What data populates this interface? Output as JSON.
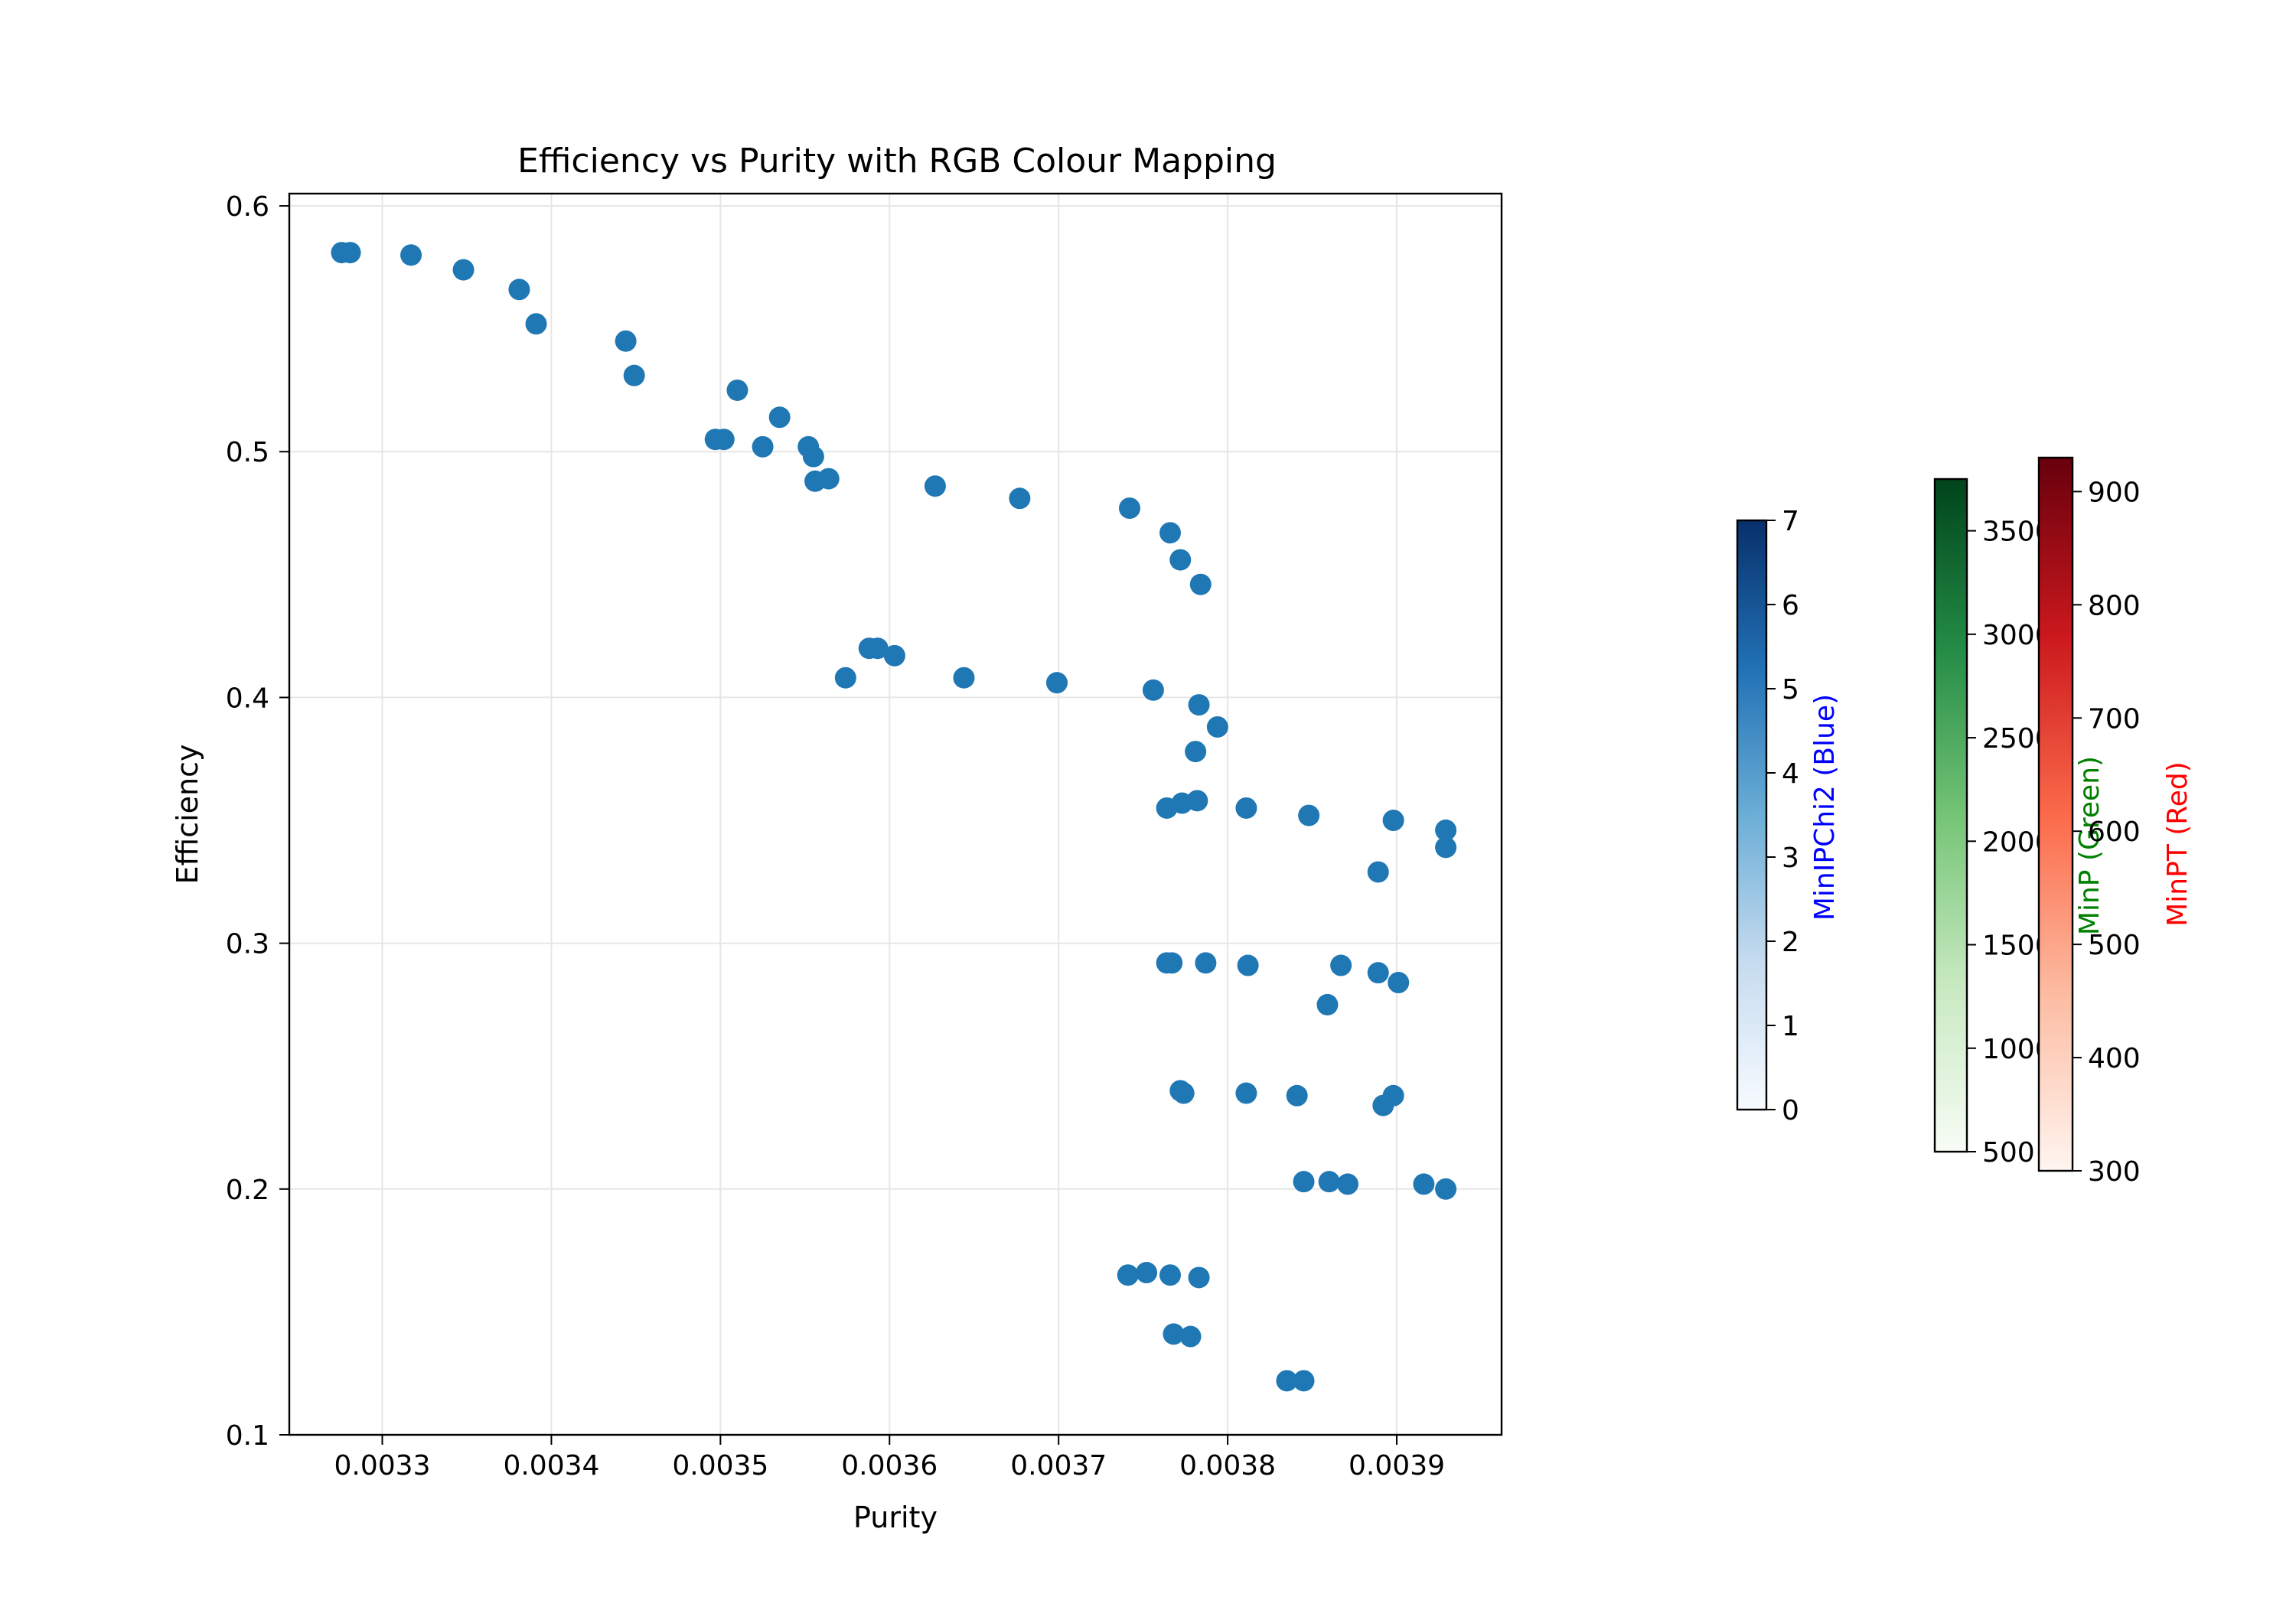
{
  "chart_data": {
    "type": "scatter",
    "title": "Efficiency vs Purity with RGB Colour Mapping",
    "xlabel": "Purity",
    "ylabel": "Efficiency",
    "xlim": [
      0.003245,
      0.003962
    ],
    "ylim": [
      0.1,
      0.605
    ],
    "grid": true,
    "xticks": [
      {
        "value": 0.0033,
        "label": "0.0033"
      },
      {
        "value": 0.0034,
        "label": "0.0034"
      },
      {
        "value": 0.0035,
        "label": "0.0035"
      },
      {
        "value": 0.0036,
        "label": "0.0036"
      },
      {
        "value": 0.0037,
        "label": "0.0037"
      },
      {
        "value": 0.0038,
        "label": "0.0038"
      },
      {
        "value": 0.0039,
        "label": "0.0039"
      }
    ],
    "yticks": [
      {
        "value": 0.1,
        "label": "0.1"
      },
      {
        "value": 0.2,
        "label": "0.2"
      },
      {
        "value": 0.3,
        "label": "0.3"
      },
      {
        "value": 0.4,
        "label": "0.4"
      },
      {
        "value": 0.5,
        "label": "0.5"
      },
      {
        "value": 0.6,
        "label": "0.6"
      }
    ],
    "marker_color": "#1f77b4",
    "points": [
      [
        0.003276,
        0.581
      ],
      [
        0.003281,
        0.581
      ],
      [
        0.003317,
        0.58
      ],
      [
        0.003348,
        0.574
      ],
      [
        0.003381,
        0.566
      ],
      [
        0.003391,
        0.552
      ],
      [
        0.003444,
        0.545
      ],
      [
        0.003449,
        0.531
      ],
      [
        0.003497,
        0.505
      ],
      [
        0.003502,
        0.505
      ],
      [
        0.00351,
        0.525
      ],
      [
        0.003525,
        0.502
      ],
      [
        0.003535,
        0.514
      ],
      [
        0.003552,
        0.502
      ],
      [
        0.003555,
        0.498
      ],
      [
        0.003556,
        0.488
      ],
      [
        0.003564,
        0.489
      ],
      [
        0.003627,
        0.486
      ],
      [
        0.003677,
        0.481
      ],
      [
        0.003742,
        0.477
      ],
      [
        0.003766,
        0.467
      ],
      [
        0.003772,
        0.456
      ],
      [
        0.003784,
        0.446
      ],
      [
        0.003574,
        0.408
      ],
      [
        0.003588,
        0.42
      ],
      [
        0.003593,
        0.42
      ],
      [
        0.003603,
        0.417
      ],
      [
        0.003644,
        0.408
      ],
      [
        0.003699,
        0.406
      ],
      [
        0.003756,
        0.403
      ],
      [
        0.003783,
        0.397
      ],
      [
        0.003794,
        0.388
      ],
      [
        0.003781,
        0.378
      ],
      [
        0.003764,
        0.355
      ],
      [
        0.003773,
        0.357
      ],
      [
        0.003782,
        0.358
      ],
      [
        0.003811,
        0.355
      ],
      [
        0.003848,
        0.352
      ],
      [
        0.003898,
        0.35
      ],
      [
        0.003929,
        0.346
      ],
      [
        0.003929,
        0.339
      ],
      [
        0.003889,
        0.329
      ],
      [
        0.003764,
        0.292
      ],
      [
        0.003767,
        0.292
      ],
      [
        0.003787,
        0.292
      ],
      [
        0.003812,
        0.291
      ],
      [
        0.003867,
        0.291
      ],
      [
        0.003889,
        0.288
      ],
      [
        0.003901,
        0.284
      ],
      [
        0.003859,
        0.275
      ],
      [
        0.003772,
        0.24
      ],
      [
        0.003774,
        0.239
      ],
      [
        0.003811,
        0.239
      ],
      [
        0.003841,
        0.238
      ],
      [
        0.003898,
        0.238
      ],
      [
        0.003892,
        0.234
      ],
      [
        0.003845,
        0.203
      ],
      [
        0.00386,
        0.203
      ],
      [
        0.003871,
        0.202
      ],
      [
        0.003916,
        0.202
      ],
      [
        0.003929,
        0.2
      ],
      [
        0.003741,
        0.165
      ],
      [
        0.003752,
        0.166
      ],
      [
        0.003766,
        0.165
      ],
      [
        0.003783,
        0.164
      ],
      [
        0.003768,
        0.141
      ],
      [
        0.003778,
        0.14
      ],
      [
        0.003835,
        0.122
      ],
      [
        0.003845,
        0.122
      ]
    ],
    "colorbars": [
      {
        "label": "MinIPChi2 (Blue)",
        "label_color": "#0000ff",
        "cmap": "Blues",
        "range": [
          0,
          7
        ],
        "ticks": [
          "0",
          "1",
          "2",
          "3",
          "4",
          "5",
          "6",
          "7"
        ],
        "tick_values": [
          0,
          1,
          2,
          3,
          4,
          5,
          6,
          7
        ],
        "stops": [
          "#f7fbff",
          "#c6dbef",
          "#6baed6",
          "#2171b5",
          "#08306b"
        ]
      },
      {
        "label": "MinP (Green)",
        "label_color": "#008000",
        "cmap": "Greens",
        "range": [
          500,
          3750
        ],
        "ticks": [
          "500",
          "1000",
          "1500",
          "2000",
          "2500",
          "3000",
          "3500"
        ],
        "tick_values": [
          500,
          1000,
          1500,
          2000,
          2500,
          3000,
          3500
        ],
        "stops": [
          "#f7fcf5",
          "#c7e9c0",
          "#74c476",
          "#238b45",
          "#00441b"
        ]
      },
      {
        "label": "MinPT (Red)",
        "label_color": "#ff0000",
        "cmap": "Reds",
        "range": [
          300,
          930
        ],
        "ticks": [
          "300",
          "400",
          "500",
          "600",
          "700",
          "800",
          "900"
        ],
        "tick_values": [
          300,
          400,
          500,
          600,
          700,
          800,
          900
        ],
        "stops": [
          "#fff5f0",
          "#fcbba1",
          "#fb6a4a",
          "#cb181d",
          "#67000d"
        ]
      }
    ]
  }
}
